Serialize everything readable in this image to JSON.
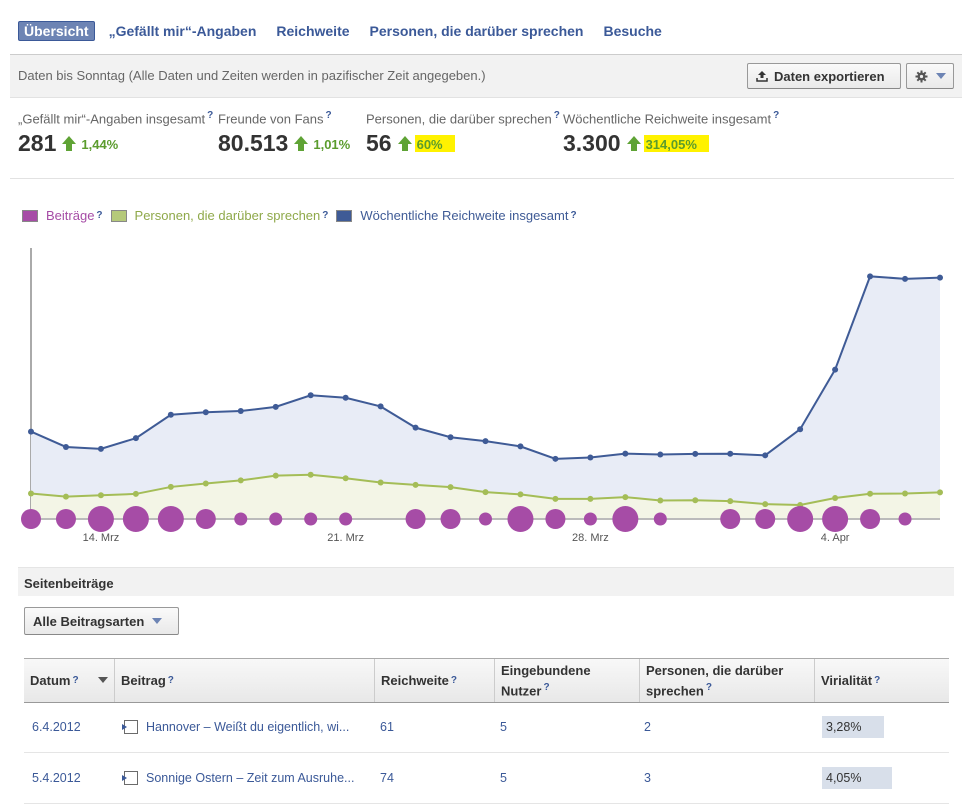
{
  "tabs": [
    {
      "label": "Übersicht",
      "active": true
    },
    {
      "label": "„Gefällt mir“-Angaben"
    },
    {
      "label": "Reichweite"
    },
    {
      "label": "Personen, die darüber sprechen"
    },
    {
      "label": "Besuche"
    }
  ],
  "infobar": {
    "text": "Daten bis Sonntag (Alle Daten und Zeiten werden in pazifischer Zeit angegeben.)",
    "export_label": "Daten exportieren"
  },
  "stats": [
    {
      "label": "„Gefällt mir“-Angaben insgesamt",
      "value": "281",
      "change": "1,44%",
      "highlight": false
    },
    {
      "label": "Freunde von Fans",
      "value": "80.513",
      "change": "1,01%",
      "highlight": false
    },
    {
      "label": "Personen, die darüber sprechen",
      "value": "56",
      "change": "60%",
      "highlight": true
    },
    {
      "label": "Wöchentliche Reichweite insgesamt",
      "value": "3.300",
      "change": "314,05%",
      "highlight": true
    }
  ],
  "help_mark": "?",
  "colors": {
    "posts": "#a64ca6",
    "talking": "#a4bd57",
    "reach": "#3f5b96",
    "reach_fill": "#e8ecf6",
    "talking_fill": "#f3f5e6"
  },
  "chart_data": {
    "type": "line",
    "legend": [
      "Beiträge",
      "Personen, die darüber sprechen",
      "Wöchentliche Reichweite insgesamt"
    ],
    "x_tick_labels": [
      "14. Mrz",
      "21. Mrz",
      "28. Mrz",
      "4. Apr"
    ],
    "reach": [
      774,
      638,
      621,
      716,
      923,
      945,
      956,
      993,
      1096,
      1074,
      997,
      809,
      724,
      690,
      643,
      533,
      545,
      579,
      571,
      577,
      578,
      564,
      795,
      1323,
      2149,
      2127,
      2138
    ],
    "talking": [
      226,
      198,
      210,
      222,
      284,
      314,
      342,
      384,
      392,
      361,
      323,
      302,
      282,
      238,
      218,
      178,
      178,
      194,
      164,
      166,
      158,
      132,
      124,
      186,
      224,
      226,
      236
    ],
    "posts": [
      2,
      2,
      3,
      3,
      3,
      2,
      1,
      1,
      1,
      1,
      0,
      2,
      2,
      1,
      3,
      2,
      1,
      3,
      1,
      0,
      2,
      2,
      3,
      3,
      2,
      1,
      0
    ]
  },
  "posts_section": {
    "title": "Seitenbeiträge",
    "filter_label": "Alle Beitragsarten"
  },
  "table": {
    "headers": [
      "Datum",
      "Beitrag",
      "Reichweite",
      "Eingebundene Nutzer",
      "Personen, die darüber sprechen",
      "Virialität"
    ],
    "rows": [
      {
        "date": "6.4.2012",
        "post": "Hannover – Weißt du eigentlich, wi...",
        "reach": "61",
        "engaged": "5",
        "talking": "2",
        "virality": "3,28%"
      },
      {
        "date": "5.4.2012",
        "post": "Sonnige Ostern – Zeit zum Ausruhe...",
        "reach": "74",
        "engaged": "5",
        "talking": "3",
        "virality": "4,05%"
      }
    ]
  }
}
